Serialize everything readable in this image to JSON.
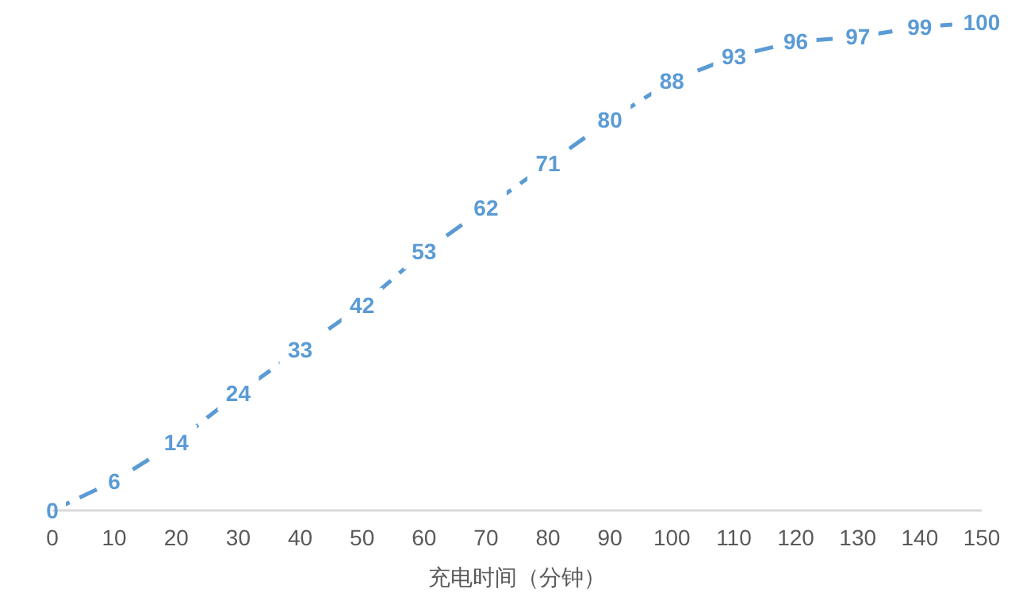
{
  "chart_data": {
    "type": "line",
    "xlabel": "充电时间（分钟）",
    "x": [
      0,
      10,
      20,
      30,
      40,
      50,
      60,
      70,
      80,
      90,
      100,
      110,
      120,
      130,
      140,
      150
    ],
    "xlim": [
      0,
      150
    ],
    "xticks": [
      0,
      10,
      20,
      30,
      40,
      50,
      60,
      70,
      80,
      90,
      100,
      110,
      120,
      130,
      140,
      150
    ],
    "series": [
      {
        "color": "#5b9bd5",
        "values": [
          0,
          6,
          14,
          24,
          33,
          42,
          53,
          62,
          71,
          80,
          88,
          93,
          96,
          97,
          99,
          100
        ]
      }
    ],
    "data_labels": true,
    "line_style": "dashed",
    "marker": "none",
    "grid": false
  }
}
